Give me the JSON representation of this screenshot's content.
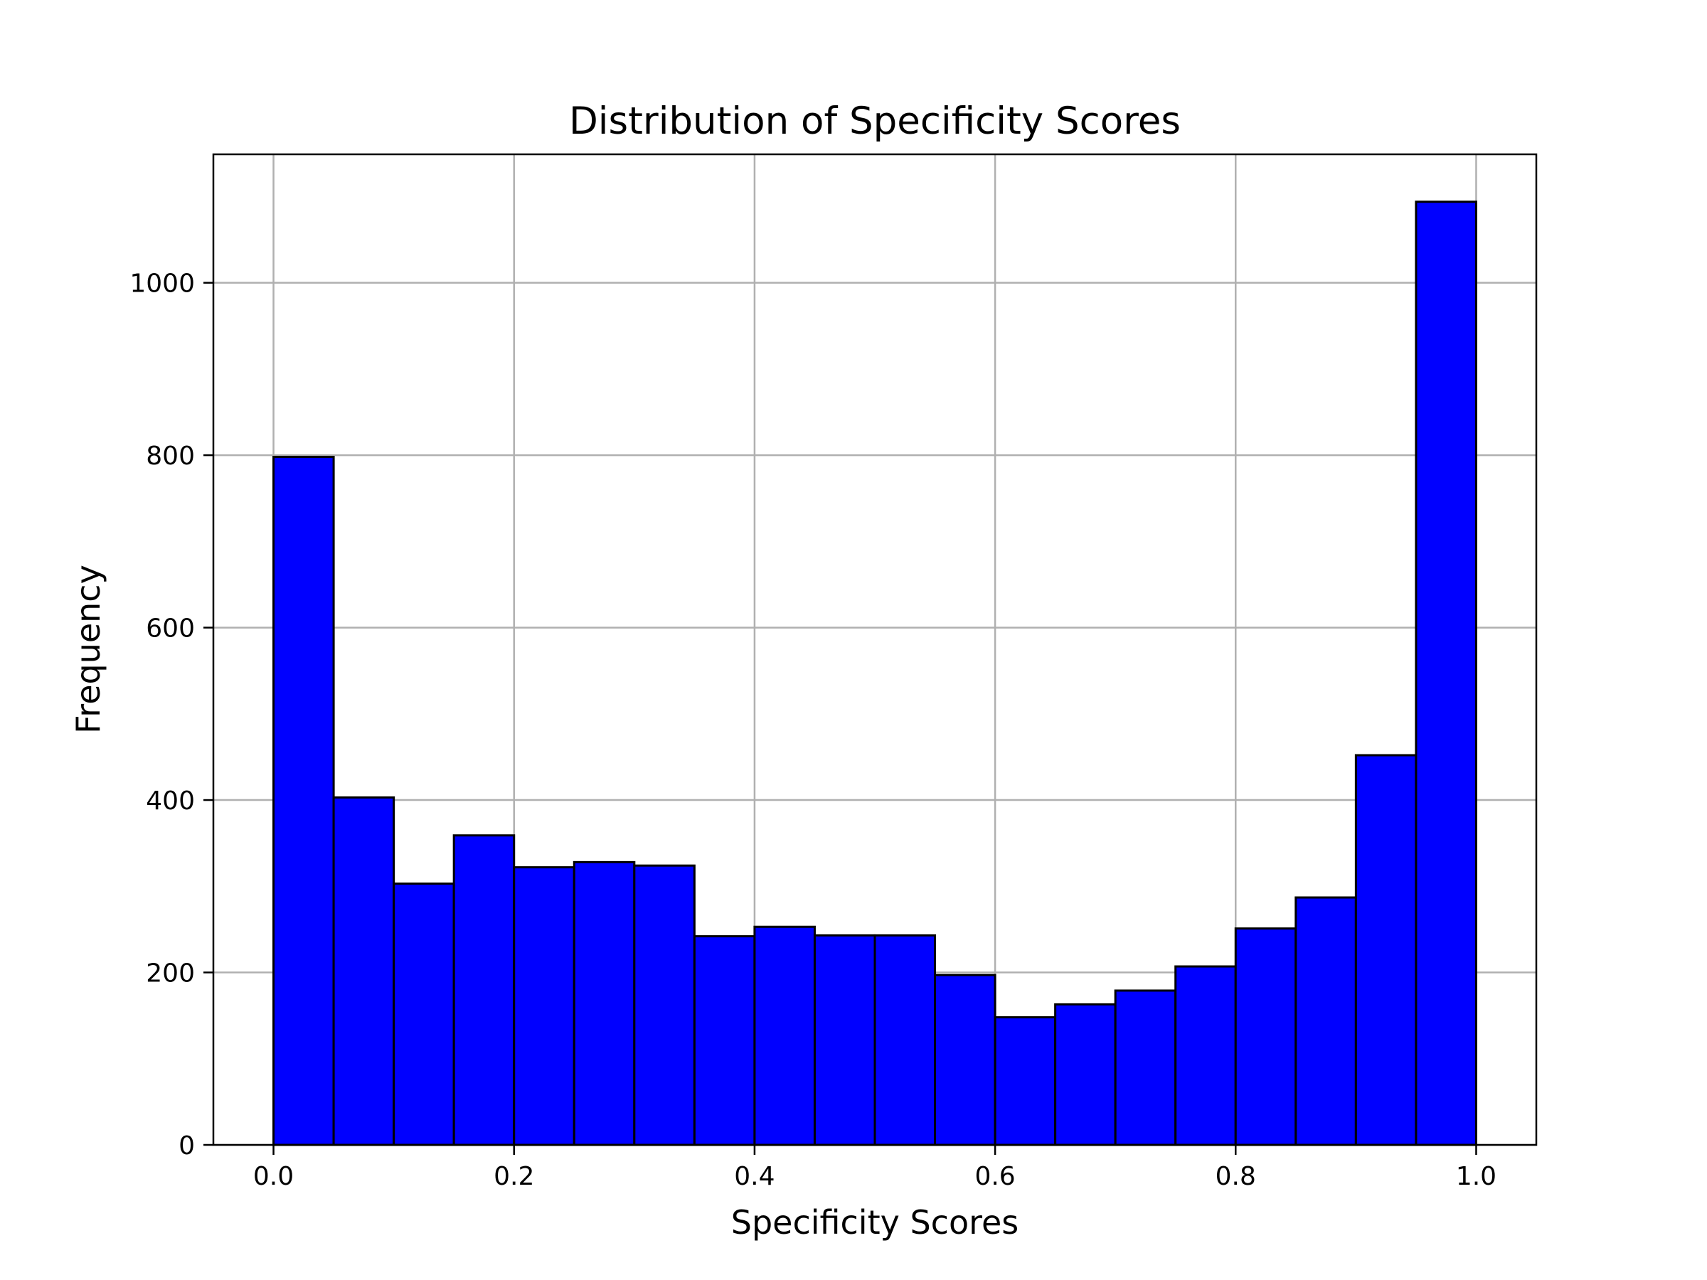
{
  "chart_data": {
    "type": "bar",
    "title": "Distribution of Specificity Scores",
    "xlabel": "Specificity Scores",
    "ylabel": "Frequency",
    "bin_edges": [
      0.0,
      0.05,
      0.1,
      0.15,
      0.2,
      0.25,
      0.3,
      0.35,
      0.4,
      0.45,
      0.5,
      0.55,
      0.6,
      0.65,
      0.7,
      0.75,
      0.8,
      0.85,
      0.9,
      0.95,
      1.0
    ],
    "values": [
      798,
      403,
      303,
      359,
      322,
      328,
      324,
      242,
      253,
      243,
      243,
      197,
      148,
      163,
      179,
      207,
      251,
      287,
      452,
      1094
    ],
    "xlim": [
      -0.05,
      1.05
    ],
    "ylim": [
      0,
      1149
    ],
    "xticks": [
      0.0,
      0.2,
      0.4,
      0.6,
      0.8,
      1.0
    ],
    "xtick_labels": [
      "0.0",
      "0.2",
      "0.4",
      "0.6",
      "0.8",
      "1.0"
    ],
    "yticks": [
      0,
      200,
      400,
      600,
      800,
      1000
    ],
    "ytick_labels": [
      "0",
      "200",
      "400",
      "600",
      "800",
      "1000"
    ],
    "grid": true,
    "bar_color": "#0000ff",
    "edge_color": "#000000"
  }
}
